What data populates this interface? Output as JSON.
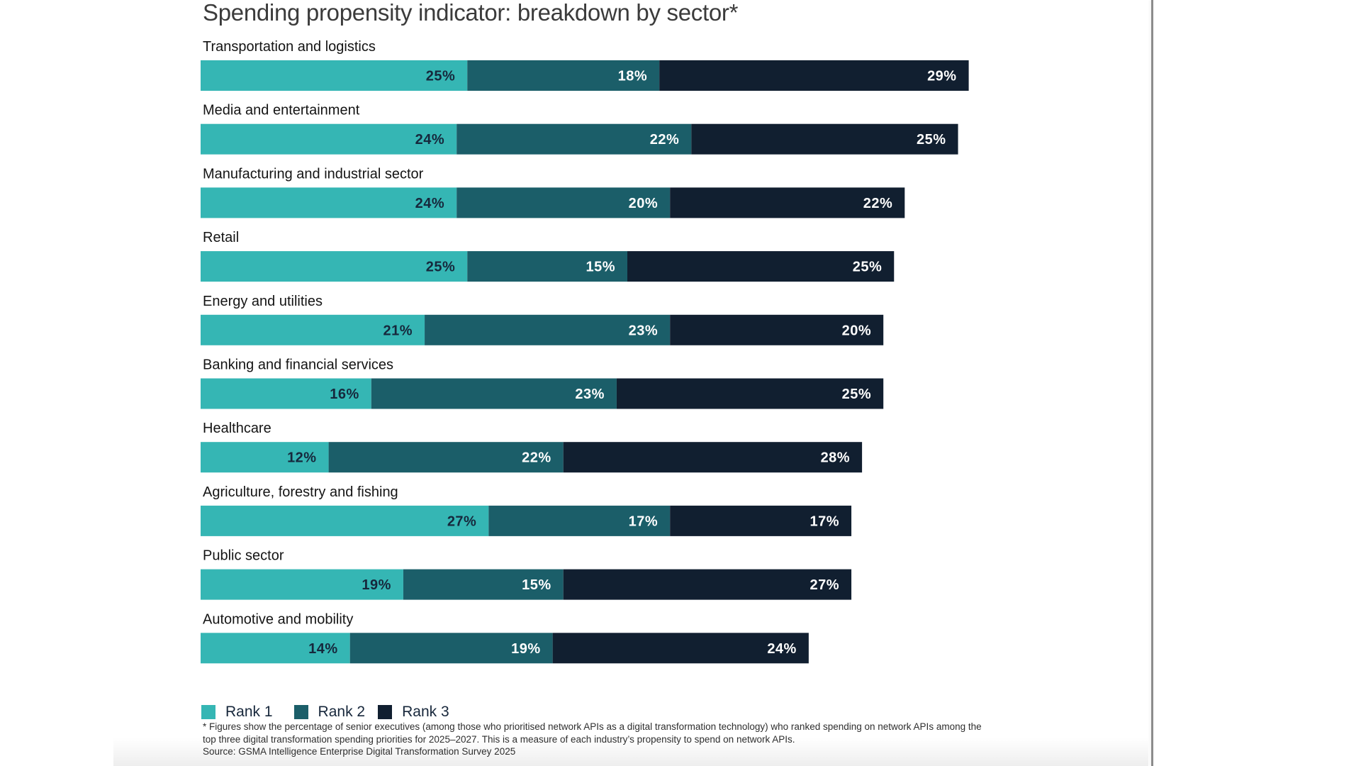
{
  "colors": {
    "rank1": "#35b6b4",
    "rank2": "#1b5e69",
    "rank3": "#111f30",
    "rank1_text": "#16283c",
    "rank2_text": "#ffffff",
    "rank3_text": "#ffffff",
    "category_text": "#141414"
  },
  "chart_data": {
    "type": "bar",
    "orientation": "horizontal",
    "stacked": true,
    "title": "Spending propensity indicator: breakdown by sector*",
    "xlabel": "",
    "ylabel": "",
    "unit": "%",
    "grid": false,
    "legend_position": "bottom-left",
    "categories": [
      "Transportation and logistics",
      "Media and entertainment",
      "Manufacturing and industrial sector",
      "Retail",
      "Energy and utilities",
      "Banking and financial services",
      "Healthcare",
      "Agriculture, forestry and fishing",
      "Public sector",
      "Automotive and mobility"
    ],
    "series": [
      {
        "name": "Rank 1",
        "values": [
          25,
          24,
          24,
          25,
          21,
          16,
          12,
          27,
          19,
          14
        ]
      },
      {
        "name": "Rank 2",
        "values": [
          18,
          22,
          20,
          15,
          23,
          23,
          22,
          17,
          15,
          19
        ]
      },
      {
        "name": "Rank 3",
        "values": [
          29,
          25,
          22,
          25,
          20,
          25,
          28,
          17,
          27,
          24
        ]
      }
    ]
  },
  "legend": [
    {
      "label": "Rank 1"
    },
    {
      "label": "Rank 2"
    },
    {
      "label": "Rank 3"
    }
  ],
  "footnote": {
    "line1": "* Figures show the percentage of senior executives (among those who prioritised network APIs as a digital transformation technology) who ranked spending on network APIs among the",
    "line2": "top three digital transformation spending priorities for 2025–2027. This is a measure of each industry’s propensity to spend on network APIs.",
    "source": "Source: GSMA Intelligence Enterprise Digital Transformation Survey 2025"
  }
}
